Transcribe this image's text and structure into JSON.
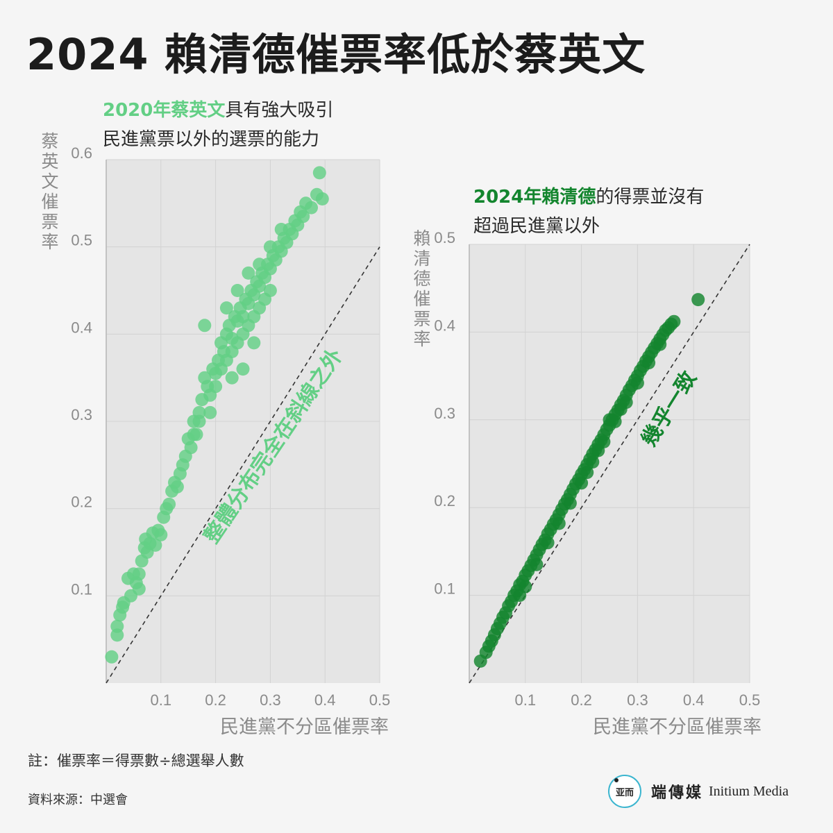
{
  "title": "2024 賴清德催票率低於蔡英文",
  "colors": {
    "light_green": "#63cf85",
    "dark_green": "#13852e",
    "plot_bg": "#e5e5e5",
    "axis_text": "#8a8a8a"
  },
  "panel_left": {
    "subtitle_highlight": "2020年蔡英文",
    "subtitle_rest": "具有強大吸引",
    "subtitle_line2": "民進黨票以外的選票的能力"
  },
  "panel_right": {
    "subtitle_highlight": "2024年賴清德",
    "subtitle_rest": "的得票並沒有",
    "subtitle_line2": "超過民進黨以外"
  },
  "chart_data": [
    {
      "type": "scatter",
      "xlabel": "民進黨不分區催票率",
      "ylabel": "蔡英文催票率",
      "xlim": [
        0,
        0.5
      ],
      "ylim": [
        0,
        0.6
      ],
      "xticks": [
        "0.1",
        "0.2",
        "0.3",
        "0.4",
        "0.5"
      ],
      "yticks": [
        "0.1",
        "0.2",
        "0.3",
        "0.4",
        "0.5",
        "0.6"
      ],
      "grid": true,
      "reference_line": "y = x",
      "annotation": "整體分布完全在斜線之外",
      "color": "#63cf85",
      "points": [
        [
          0.01,
          0.03
        ],
        [
          0.02,
          0.055
        ],
        [
          0.02,
          0.065
        ],
        [
          0.025,
          0.078
        ],
        [
          0.03,
          0.087
        ],
        [
          0.032,
          0.092
        ],
        [
          0.04,
          0.12
        ],
        [
          0.045,
          0.1
        ],
        [
          0.05,
          0.125
        ],
        [
          0.055,
          0.115
        ],
        [
          0.06,
          0.108
        ],
        [
          0.06,
          0.125
        ],
        [
          0.065,
          0.14
        ],
        [
          0.07,
          0.155
        ],
        [
          0.072,
          0.165
        ],
        [
          0.075,
          0.15
        ],
        [
          0.08,
          0.16
        ],
        [
          0.085,
          0.172
        ],
        [
          0.09,
          0.158
        ],
        [
          0.095,
          0.175
        ],
        [
          0.1,
          0.17
        ],
        [
          0.105,
          0.19
        ],
        [
          0.11,
          0.2
        ],
        [
          0.115,
          0.205
        ],
        [
          0.12,
          0.22
        ],
        [
          0.125,
          0.23
        ],
        [
          0.13,
          0.225
        ],
        [
          0.135,
          0.24
        ],
        [
          0.14,
          0.25
        ],
        [
          0.145,
          0.26
        ],
        [
          0.15,
          0.28
        ],
        [
          0.155,
          0.27
        ],
        [
          0.16,
          0.3
        ],
        [
          0.165,
          0.285
        ],
        [
          0.17,
          0.31
        ],
        [
          0.175,
          0.325
        ],
        [
          0.18,
          0.35
        ],
        [
          0.185,
          0.34
        ],
        [
          0.19,
          0.33
        ],
        [
          0.195,
          0.36
        ],
        [
          0.2,
          0.355
        ],
        [
          0.205,
          0.37
        ],
        [
          0.21,
          0.39
        ],
        [
          0.215,
          0.38
        ],
        [
          0.22,
          0.4
        ],
        [
          0.225,
          0.41
        ],
        [
          0.23,
          0.395
        ],
        [
          0.235,
          0.42
        ],
        [
          0.24,
          0.415
        ],
        [
          0.245,
          0.43
        ],
        [
          0.25,
          0.42
        ],
        [
          0.255,
          0.44
        ],
        [
          0.26,
          0.435
        ],
        [
          0.265,
          0.45
        ],
        [
          0.27,
          0.445
        ],
        [
          0.275,
          0.46
        ],
        [
          0.28,
          0.455
        ],
        [
          0.285,
          0.47
        ],
        [
          0.29,
          0.465
        ],
        [
          0.295,
          0.48
        ],
        [
          0.3,
          0.475
        ],
        [
          0.305,
          0.49
        ],
        [
          0.31,
          0.485
        ],
        [
          0.315,
          0.5
        ],
        [
          0.32,
          0.495
        ],
        [
          0.325,
          0.51
        ],
        [
          0.33,
          0.505
        ],
        [
          0.335,
          0.52
        ],
        [
          0.34,
          0.515
        ],
        [
          0.345,
          0.53
        ],
        [
          0.35,
          0.525
        ],
        [
          0.355,
          0.54
        ],
        [
          0.36,
          0.535
        ],
        [
          0.365,
          0.55
        ],
        [
          0.375,
          0.545
        ],
        [
          0.385,
          0.56
        ],
        [
          0.395,
          0.555
        ],
        [
          0.39,
          0.585
        ],
        [
          0.19,
          0.31
        ],
        [
          0.2,
          0.34
        ],
        [
          0.21,
          0.36
        ],
        [
          0.22,
          0.37
        ],
        [
          0.23,
          0.38
        ],
        [
          0.24,
          0.39
        ],
        [
          0.25,
          0.4
        ],
        [
          0.26,
          0.41
        ],
        [
          0.27,
          0.42
        ],
        [
          0.28,
          0.43
        ],
        [
          0.29,
          0.44
        ],
        [
          0.3,
          0.45
        ],
        [
          0.22,
          0.43
        ],
        [
          0.24,
          0.45
        ],
        [
          0.26,
          0.47
        ],
        [
          0.28,
          0.48
        ],
        [
          0.3,
          0.5
        ],
        [
          0.32,
          0.52
        ],
        [
          0.18,
          0.41
        ],
        [
          0.17,
          0.3
        ],
        [
          0.16,
          0.285
        ],
        [
          0.25,
          0.36
        ],
        [
          0.27,
          0.39
        ],
        [
          0.23,
          0.35
        ]
      ]
    },
    {
      "type": "scatter",
      "xlabel": "民進黨不分區催票率",
      "ylabel": "賴清德催票率",
      "xlim": [
        0,
        0.5
      ],
      "ylim": [
        0,
        0.5
      ],
      "xticks": [
        "0.1",
        "0.2",
        "0.3",
        "0.4",
        "0.5"
      ],
      "yticks": [
        "0.1",
        "0.2",
        "0.3",
        "0.4",
        "0.5"
      ],
      "grid": true,
      "reference_line": "y = x",
      "annotation": "幾乎一致",
      "color": "#13852e",
      "points": [
        [
          0.02,
          0.025
        ],
        [
          0.03,
          0.035
        ],
        [
          0.035,
          0.042
        ],
        [
          0.04,
          0.048
        ],
        [
          0.045,
          0.055
        ],
        [
          0.05,
          0.062
        ],
        [
          0.055,
          0.068
        ],
        [
          0.06,
          0.075
        ],
        [
          0.065,
          0.08
        ],
        [
          0.07,
          0.088
        ],
        [
          0.075,
          0.093
        ],
        [
          0.08,
          0.1
        ],
        [
          0.085,
          0.105
        ],
        [
          0.09,
          0.112
        ],
        [
          0.095,
          0.116
        ],
        [
          0.1,
          0.123
        ],
        [
          0.105,
          0.128
        ],
        [
          0.11,
          0.134
        ],
        [
          0.115,
          0.14
        ],
        [
          0.12,
          0.146
        ],
        [
          0.125,
          0.152
        ],
        [
          0.13,
          0.158
        ],
        [
          0.135,
          0.163
        ],
        [
          0.14,
          0.17
        ],
        [
          0.145,
          0.175
        ],
        [
          0.15,
          0.181
        ],
        [
          0.155,
          0.186
        ],
        [
          0.16,
          0.192
        ],
        [
          0.165,
          0.198
        ],
        [
          0.17,
          0.204
        ],
        [
          0.175,
          0.209
        ],
        [
          0.18,
          0.215
        ],
        [
          0.185,
          0.221
        ],
        [
          0.19,
          0.227
        ],
        [
          0.195,
          0.232
        ],
        [
          0.2,
          0.238
        ],
        [
          0.205,
          0.243
        ],
        [
          0.21,
          0.249
        ],
        [
          0.215,
          0.255
        ],
        [
          0.22,
          0.261
        ],
        [
          0.225,
          0.266
        ],
        [
          0.23,
          0.272
        ],
        [
          0.235,
          0.277
        ],
        [
          0.24,
          0.283
        ],
        [
          0.245,
          0.289
        ],
        [
          0.25,
          0.294
        ],
        [
          0.255,
          0.3
        ],
        [
          0.26,
          0.306
        ],
        [
          0.265,
          0.311
        ],
        [
          0.27,
          0.317
        ],
        [
          0.275,
          0.322
        ],
        [
          0.28,
          0.328
        ],
        [
          0.285,
          0.334
        ],
        [
          0.29,
          0.339
        ],
        [
          0.295,
          0.345
        ],
        [
          0.3,
          0.35
        ],
        [
          0.305,
          0.356
        ],
        [
          0.31,
          0.361
        ],
        [
          0.315,
          0.367
        ],
        [
          0.32,
          0.372
        ],
        [
          0.325,
          0.377
        ],
        [
          0.33,
          0.382
        ],
        [
          0.335,
          0.387
        ],
        [
          0.34,
          0.392
        ],
        [
          0.345,
          0.397
        ],
        [
          0.35,
          0.402
        ],
        [
          0.355,
          0.405
        ],
        [
          0.36,
          0.409
        ],
        [
          0.365,
          0.412
        ],
        [
          0.408,
          0.437
        ],
        [
          0.09,
          0.1
        ],
        [
          0.1,
          0.11
        ],
        [
          0.12,
          0.135
        ],
        [
          0.14,
          0.16
        ],
        [
          0.16,
          0.182
        ],
        [
          0.18,
          0.205
        ],
        [
          0.2,
          0.228
        ],
        [
          0.22,
          0.252
        ],
        [
          0.24,
          0.275
        ],
        [
          0.26,
          0.298
        ],
        [
          0.28,
          0.32
        ],
        [
          0.3,
          0.342
        ],
        [
          0.32,
          0.365
        ],
        [
          0.34,
          0.386
        ],
        [
          0.25,
          0.3
        ],
        [
          0.27,
          0.312
        ],
        [
          0.23,
          0.265
        ],
        [
          0.21,
          0.24
        ]
      ]
    }
  ],
  "note": "註：催票率＝得票數÷總選舉人數",
  "source": "資料來源：中選會",
  "brand": {
    "name_cn": "端傳媒",
    "name_en": "Initium Media",
    "logo_glyph": "亚而"
  }
}
